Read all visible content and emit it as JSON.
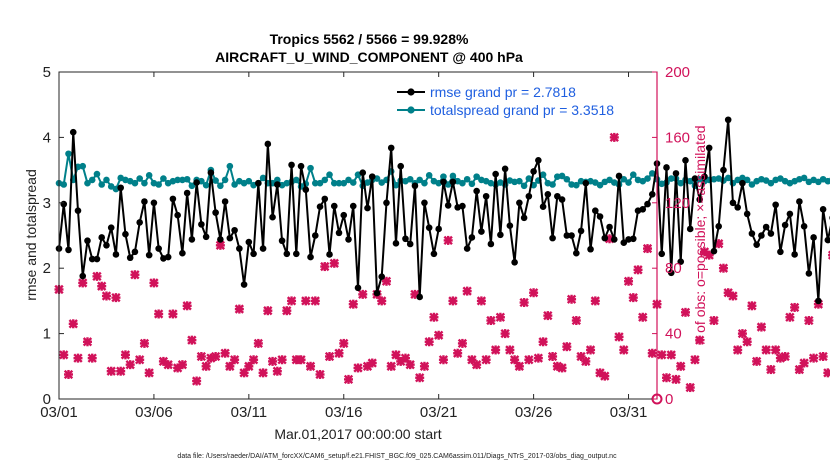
{
  "chart_data": {
    "type": "line",
    "title_line1": "Tropics 5562 / 5566 = 99.928%",
    "title_line2": "AIRCRAFT_U_WIND_COMPONENT @ 400 hPa",
    "xlabel": "Mar.01,2017 00:00:00 start",
    "ylabel_left": "rmse and totalspread",
    "ylabel_right": "# of obs: o=possible; ×=assimilated",
    "footnote": "data file: /Users/raeder/DAI/ATM_forcXX/CAM6_setup/f.e21.FHIST_BGC.f09_025.CAM6assim.011/Diags_NTrS_2017-03/obs_diag_output.nc",
    "x_ticks": [
      0,
      5,
      10,
      15,
      20,
      25,
      30
    ],
    "x_tick_labels": [
      "03/01",
      "03/06",
      "03/11",
      "03/16",
      "03/21",
      "03/26",
      "03/31"
    ],
    "xlim": [
      0,
      31.5
    ],
    "ylim_left": [
      0,
      5
    ],
    "y_ticks_left": [
      0,
      1,
      2,
      3,
      4,
      5
    ],
    "y_tick_labels_left": [
      "0",
      "1",
      "2",
      "3",
      "4",
      "5"
    ],
    "ylim_right": [
      0,
      200
    ],
    "y_ticks_right": [
      0,
      40,
      80,
      120,
      160,
      200
    ],
    "y_tick_labels_right": [
      "0",
      "40",
      "80",
      "120",
      "160",
      "200"
    ],
    "x_step_days": 0.25,
    "colors": {
      "rmse": "#000000",
      "spread": "#00808a",
      "obs": "#d1125a",
      "legend_text": "#1f5fe0"
    },
    "series": [
      {
        "name": "rmse grand pr = 2.7818",
        "axis": "left",
        "values": [
          2.3,
          2.98,
          2.28,
          4.08,
          2.88,
          1.88,
          2.42,
          2.14,
          2.14,
          2.47,
          2.35,
          2.62,
          2.21,
          3.23,
          2.52,
          2.16,
          2.25,
          2.7,
          3.02,
          2.2,
          3.0,
          2.3,
          2.15,
          2.17,
          3.06,
          2.81,
          2.23,
          3.15,
          2.44,
          3.31,
          2.67,
          2.48,
          3.46,
          2.85,
          2.44,
          3.02,
          2.46,
          2.58,
          2.3,
          1.75,
          2.4,
          2.22,
          3.3,
          2.3,
          3.9,
          2.78,
          3.28,
          2.42,
          2.22,
          3.58,
          2.22,
          3.56,
          3.2,
          2.17,
          2.5,
          2.94,
          3.06,
          2.21,
          2.95,
          2.54,
          2.81,
          2.44,
          2.95,
          1.7,
          3.46,
          2.92,
          3.4,
          1.62,
          1.87,
          3.0,
          3.84,
          2.38,
          3.56,
          2.45,
          2.37,
          3.26,
          1.56,
          3.0,
          2.62,
          2.22,
          2.6,
          3.32,
          2.96,
          3.32,
          2.93,
          2.95,
          2.3,
          2.47,
          3.18,
          2.56,
          3.1,
          2.37,
          3.44,
          2.51,
          3.52,
          2.65,
          2.09,
          3.0,
          2.77,
          3.1,
          3.48,
          3.65,
          2.94,
          3.13,
          2.46,
          3.1,
          3.05,
          2.5,
          2.5,
          2.23,
          2.57,
          3.3,
          2.29,
          2.88,
          2.79,
          2.46,
          2.63,
          2.44,
          3.41,
          2.39,
          2.44,
          2.45,
          2.88,
          2.9,
          2.98,
          3.13,
          3.6,
          2.22,
          3.54,
          1.93,
          3.45,
          2.1,
          3.65,
          2.6,
          3.37,
          3.05,
          3.4,
          3.84,
          2.26,
          2.64,
          3.5,
          4.27,
          3.0,
          2.93,
          3.3,
          2.83,
          2.53,
          2.36,
          2.5,
          2.63,
          2.53,
          2.97,
          2.25,
          2.66,
          2.83,
          2.21,
          3.02,
          2.64,
          1.92,
          2.47,
          1.5,
          2.9,
          2.43,
          2.77,
          2.5,
          2.18,
          3.06,
          2.87,
          2.77,
          2.85,
          2.64,
          2.04,
          2.42
        ]
      },
      {
        "name": "totalspread grand pr = 3.3518",
        "axis": "left",
        "values": [
          3.3,
          3.28,
          3.75,
          3.35,
          3.55,
          3.56,
          3.3,
          3.35,
          3.44,
          3.28,
          3.35,
          3.25,
          3.21,
          3.38,
          3.35,
          3.33,
          3.3,
          3.37,
          3.3,
          3.42,
          3.3,
          3.28,
          3.37,
          3.3,
          3.33,
          3.35,
          3.35,
          3.36,
          3.26,
          3.35,
          3.33,
          3.27,
          3.5,
          3.34,
          3.26,
          3.35,
          3.56,
          3.28,
          3.33,
          3.3,
          3.33,
          3.27,
          3.3,
          3.38,
          3.3,
          3.3,
          3.35,
          3.27,
          3.3,
          3.32,
          3.35,
          3.25,
          3.29,
          3.53,
          3.3,
          3.3,
          3.35,
          3.43,
          3.3,
          3.3,
          3.3,
          3.35,
          3.31,
          3.43,
          3.26,
          3.31,
          3.35,
          3.37,
          3.31,
          3.35,
          3.48,
          3.27,
          3.34,
          3.33,
          3.36,
          3.3,
          3.35,
          3.3,
          3.42,
          3.33,
          3.3,
          3.4,
          3.28,
          3.41,
          3.33,
          3.3,
          3.36,
          3.29,
          3.4,
          3.35,
          3.33,
          3.3,
          3.28,
          3.31,
          3.28,
          3.34,
          3.32,
          3.33,
          3.26,
          3.37,
          3.27,
          3.34,
          3.43,
          3.3,
          3.28,
          3.4,
          3.41,
          3.36,
          3.28,
          3.27,
          3.33,
          3.32,
          3.33,
          3.31,
          3.27,
          3.32,
          3.35,
          3.31,
          3.28,
          3.36,
          3.31,
          3.43,
          3.35,
          3.33,
          3.37,
          3.45,
          3.36,
          3.29,
          3.31,
          3.37,
          3.37,
          3.3,
          3.35,
          3.33,
          3.26,
          3.36,
          3.33,
          3.35,
          3.36,
          3.37,
          3.34,
          3.38,
          3.3,
          3.35,
          3.38,
          3.35,
          3.28,
          3.33,
          3.36,
          3.34,
          3.3,
          3.35,
          3.37,
          3.33,
          3.3,
          3.33,
          3.36,
          3.38,
          3.32,
          3.35,
          3.32,
          3.36,
          3.33,
          3.36,
          3.37,
          3.33,
          3.36,
          3.34,
          3.38,
          3.35,
          3.3,
          3.3,
          3.3
        ]
      },
      {
        "name": "# of obs assimilated",
        "axis": "right",
        "values": [
          67,
          27,
          15,
          46,
          25,
          71,
          35,
          25,
          75,
          69,
          63,
          17,
          62,
          17,
          27,
          21,
          76,
          24,
          34,
          16,
          71,
          52,
          23,
          21,
          52,
          19,
          21,
          57,
          36,
          11,
          26,
          20,
          25,
          26,
          94,
          28,
          20,
          24,
          55,
          16,
          20,
          24,
          34,
          16,
          54,
          23,
          17,
          24,
          54,
          60,
          24,
          24,
          60,
          20,
          60,
          15,
          81,
          26,
          83,
          28,
          34,
          12,
          58,
          19,
          64,
          20,
          22,
          64,
          60,
          72,
          20,
          27,
          23,
          25,
          21,
          64,
          13,
          20,
          35,
          50,
          39,
          24,
          97,
          60,
          28,
          34,
          66,
          24,
          21,
          60,
          24,
          48,
          30,
          50,
          40,
          30,
          24,
          20,
          59,
          24,
          65,
          25,
          35,
          51,
          26,
          20,
          19,
          32,
          61,
          48,
          26,
          23,
          30,
          60,
          16,
          14,
          98,
          160,
          38,
          30,
          72,
          62,
          79,
          50,
          92,
          28,
          58,
          27,
          13,
          27,
          12,
          20,
          53,
          7,
          24,
          36,
          90,
          88,
          48,
          95,
          80,
          65,
          63,
          30,
          40,
          35,
          57,
          23,
          44,
          30,
          18,
          30,
          25,
          26,
          50,
          56,
          18,
          22,
          48,
          25,
          58,
          26,
          16,
          88,
          66,
          40,
          27,
          22,
          82,
          26,
          70,
          25,
          30
        ]
      }
    ],
    "obs_possible_marker_at_end": {
      "x_day": 31.5,
      "value": 0
    }
  }
}
